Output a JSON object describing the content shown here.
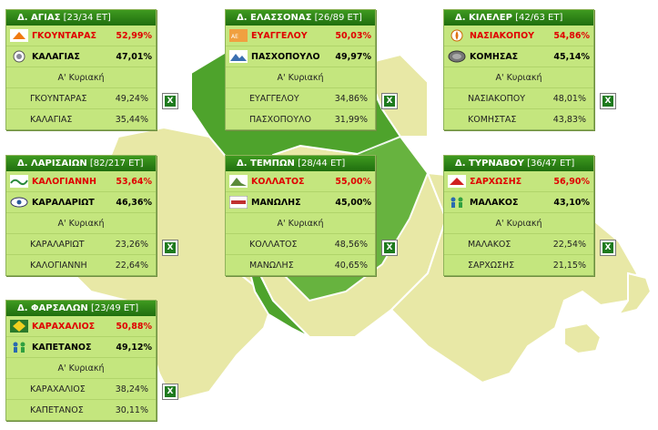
{
  "boxes": [
    {
      "title": "Δ. ΑΓΙΑΣ",
      "stats": "[23/34 ΕΤ]",
      "first": [
        {
          "name": "ΓΚΟΥΝΤΑΡΑΣ",
          "pct": "52,99%",
          "icon": "orange-logo-icon"
        },
        {
          "name": "ΚΑΛΑΓΙΑΣ",
          "pct": "47,01%",
          "icon": "emblem-logo-icon"
        }
      ],
      "round_label": "Α' Κυριακή",
      "second": [
        {
          "name": "ΓΚΟΥΝΤΑΡΑΣ",
          "pct": "49,24%"
        },
        {
          "name": "ΚΑΛΑΓΙΑΣ",
          "pct": "35,44%"
        }
      ]
    },
    {
      "title": "Δ. ΕΛΑΣΣΟΝΑΣ",
      "stats": "[26/89 ΕΤ]",
      "first": [
        {
          "name": "ΕΥΑΓΓΕΛΟΥ",
          "pct": "50,03%",
          "icon": "orange-logo-icon"
        },
        {
          "name": "ΠΑΣΧΟΠΟΥΛΟ",
          "pct": "49,97%",
          "icon": "mountain-logo-icon"
        }
      ],
      "round_label": "Α' Κυριακή",
      "second": [
        {
          "name": "ΕΥΑΓΓΕΛΟΥ",
          "pct": "34,86%"
        },
        {
          "name": "ΠΑΣΧΟΠΟΥΛΟ",
          "pct": "31,99%"
        }
      ]
    },
    {
      "title": "Δ. ΚΙΛΕΛΕΡ",
      "stats": "[42/63 ΕΤ]",
      "first": [
        {
          "name": "ΝΑΣΙΑΚΟΠΟΥ",
          "pct": "54,86%",
          "icon": "flame-logo-icon"
        },
        {
          "name": "ΚΟΜΗΣΑΣ",
          "pct": "45,14%",
          "icon": "coin-logo-icon"
        }
      ],
      "round_label": "Α' Κυριακή",
      "second": [
        {
          "name": "ΝΑΣΙΑΚΟΠΟΥ",
          "pct": "48,01%"
        },
        {
          "name": "ΚΟΜΗΣΤΑΣ",
          "pct": "43,83%"
        }
      ]
    },
    {
      "title": "Δ. ΛΑΡΙΣΑΙΩΝ",
      "stats": "[82/217 ΕΤ]",
      "first": [
        {
          "name": "ΚΑΛΟΓΙΑΝΝΗ",
          "pct": "53,64%",
          "icon": "wave-logo-icon"
        },
        {
          "name": "ΚΑΡΑΛΑΡΙΩΤ",
          "pct": "46,36%",
          "icon": "eye-logo-icon"
        }
      ],
      "round_label": "Α' Κυριακή",
      "second": [
        {
          "name": "ΚΑΡΑΛΑΡΙΩΤ",
          "pct": "23,26%"
        },
        {
          "name": "ΚΑΛΟΓΙΑΝΝΗ",
          "pct": "22,64%"
        }
      ]
    },
    {
      "title": "Δ. ΤΕΜΠΩΝ",
      "stats": "[28/44 ΕΤ]",
      "first": [
        {
          "name": "ΚΟΛΛΑΤΟΣ",
          "pct": "55,00%",
          "icon": "mountain-logo-icon"
        },
        {
          "name": "ΜΑΝΩΛΗΣ",
          "pct": "45,00%",
          "icon": "text-logo-icon"
        }
      ],
      "round_label": "Α' Κυριακή",
      "second": [
        {
          "name": "ΚΟΛΛΑΤΟΣ",
          "pct": "48,56%"
        },
        {
          "name": "ΜΑΝΩΛΗΣ",
          "pct": "40,65%"
        }
      ]
    },
    {
      "title": "Δ. ΤΥΡΝΑΒΟΥ",
      "stats": "[36/47 ΕΤ]",
      "first": [
        {
          "name": "ΣΑΡΧΩΣΗΣ",
          "pct": "56,90%",
          "icon": "red-logo-icon"
        },
        {
          "name": "ΜΑΛΑΚΟΣ",
          "pct": "43,10%",
          "icon": "people-logo-icon"
        }
      ],
      "round_label": "Α' Κυριακή",
      "second": [
        {
          "name": "ΜΑΛΑΚΟΣ",
          "pct": "22,54%"
        },
        {
          "name": "ΣΑΡΧΩΣΗΣ",
          "pct": "21,15%"
        }
      ]
    },
    {
      "title": "Δ. ΦΑΡΣΑΛΩΝ",
      "stats": "[23/49 ΕΤ]",
      "first": [
        {
          "name": "ΚΑΡΑΧΑΛΙΟΣ",
          "pct": "50,88%",
          "icon": "diamond-logo-icon"
        },
        {
          "name": "ΚΑΠΕΤΑΝΟΣ",
          "pct": "49,12%",
          "icon": "people-logo-icon"
        }
      ],
      "round_label": "Α' Κυριακή",
      "second": [
        {
          "name": "ΚΑΡΑΧΑΛΙΟΣ",
          "pct": "38,24%"
        },
        {
          "name": "ΚΑΠΕΤΑΝΟΣ",
          "pct": "30,11%"
        }
      ]
    }
  ],
  "colors": {
    "map_land": "#e8e8a6",
    "map_border": "#ffffff",
    "map_highlight": "#4ea32c",
    "box_bg": "#c4e67e",
    "title_bg": "#2e8418",
    "winner_text": "#e00000"
  }
}
